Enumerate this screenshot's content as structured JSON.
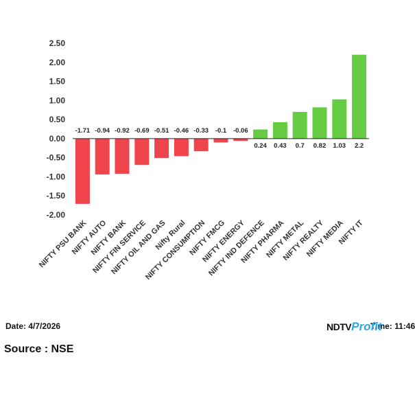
{
  "chart_data": {
    "type": "bar",
    "categories": [
      "NIFTY PSU BANK",
      "NIFTY AUTO",
      "NIFTY BANK",
      "NIFTY FIN SERVICE",
      "NIFTY OIL AND GAS",
      "Nifty Rural",
      "NIFTY CONSUMPTION",
      "NIFTY FMCG",
      "NIFTY ENERGY",
      "NIFTY IND DEFENCE",
      "NIFTY PHARMA",
      "NIFTY METAL",
      "NIFTY REALTY",
      "NIFTY MEDIA",
      "NIFTY IT"
    ],
    "values": [
      -1.71,
      -0.94,
      -0.92,
      -0.69,
      -0.51,
      -0.46,
      -0.33,
      -0.1,
      -0.06,
      0.24,
      0.43,
      0.7,
      0.82,
      1.03,
      2.2
    ],
    "value_labels": [
      "-1.71",
      "-0.94",
      "-0.92",
      "-0.69",
      "-0.51",
      "-0.46",
      "-0.33",
      "-0.1",
      "-0.06",
      "0.24",
      "0.43",
      "0.7",
      "0.82",
      "1.03",
      "2.2"
    ],
    "yticks": [
      "2.50",
      "2.00",
      "1.50",
      "1.00",
      "0.50",
      "0.00",
      "-0.50",
      "-1.00",
      "-1.50",
      "-2.00"
    ],
    "ylim": [
      -2,
      2.5
    ],
    "title": "",
    "xlabel": "",
    "ylabel": "",
    "grid": false,
    "legend": "none",
    "colors": {
      "positive": "#66cc44",
      "negative": "#f0444c",
      "zero_line": "#222222"
    }
  },
  "footer": {
    "date": "Date: 4/7/2026",
    "time": "Time: 11:46",
    "source": "Source : NSE",
    "logo_ndtv": "NDTV",
    "logo_profit": "Profit"
  }
}
